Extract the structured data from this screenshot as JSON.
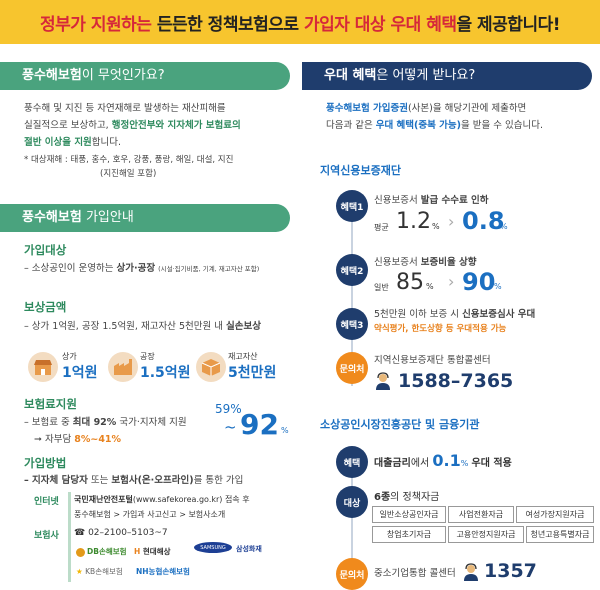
{
  "banner": {
    "part1": "정부가 지원하는",
    "part2": "든든한 정책보험으로",
    "part3": "가입자 대상 우대 혜택",
    "part4": "을 제공합니다!"
  },
  "left": {
    "what": {
      "title_bold": "풍수해보험",
      "title_rest": "이 무엇인가요?",
      "line1": "풍수해 및 지진 등 자연재해로 발생하는 재산피해를",
      "line2a": "실질적으로 보상하고,",
      "line2b": "행정안전부와 지자체가 보험료의",
      "line3a": "절반 이상을 지원",
      "line3b": "합니다.",
      "note1": "* 대상재해 : 태풍, 홍수, 호우, 강풍, 풍랑, 해일, 대설, 지진",
      "note2": "(지진해일 포함)"
    },
    "guide": {
      "title_bold": "풍수해보험",
      "title_rest": " 가입안내",
      "target_label": "가입대상",
      "target_text": "– 소상공인이 운영하는",
      "target_bold": "상가·공장",
      "target_small": "(시설·집기비품, 기계, 재고자산 포함)",
      "amount_label": "보상금액",
      "amount_text": "– 상가 1억원, 공장 1.5억원, 재고자산 5천만원 내",
      "amount_bold": "실손보상",
      "icons": [
        {
          "label": "상가",
          "value": "1억원"
        },
        {
          "label": "공장",
          "value": "1.5억원"
        },
        {
          "label": "재고자산",
          "value": "5천만원"
        }
      ],
      "premium_label": "보험료지원",
      "premium_text": "– 보험료 중",
      "premium_bold": "최대 92%",
      "premium_rest": "국가·지자체 지원",
      "premium_self": "➞ 자부담",
      "premium_self_val": "8%~41%",
      "premium_from": "59%",
      "premium_tilde": "~",
      "premium_to": "92",
      "premium_pct": "%",
      "method_label": "가입방법",
      "method_text": "– 지자체 담당자",
      "method_text2": "또는",
      "method_bold": "보험사(온·오프라인)",
      "method_rest": "를 통한 가입",
      "internet_label": "인터넷",
      "internet_line1": "국민재난안전포털",
      "internet_line1b": "(www.safekorea.go.kr) 접속 후",
      "internet_line2": "풍수해보험 > 가입과 사고신고 > 보험사소개",
      "insurer_label": "보험사",
      "phone": "☎ 02–2100–5103~7",
      "logos": [
        "DB손해보험",
        "현대해상",
        "SAMSUNG",
        "삼성화재",
        "KB손해보험",
        "NH농협손해보험"
      ]
    }
  },
  "right": {
    "benefit": {
      "title_bold": "우대 혜택",
      "title_rest": "은 어떻게 받나요?",
      "line1a": "풍수해보험 가입증권",
      "line1b": "(사본)을 해당기관에 제출하면",
      "line2a": "다음과 같은",
      "line2b": "우대 혜택(중복 가능)",
      "line2c": "을 받을 수 있습니다."
    },
    "fund": {
      "title": "지역신용보증재단",
      "b1": "혜택1",
      "b1_text": "신용보증서",
      "b1_bold": "발급 수수료 인하",
      "b1_prefix": "평균",
      "b1_from": "1.2",
      "b1_to": "0.8",
      "pct": "%",
      "b2": "혜택2",
      "b2_text": "신용보증서",
      "b2_bold": "보증비율 상향",
      "b2_prefix": "일반",
      "b2_from": "85",
      "b2_to": "90",
      "b3": "혜택3",
      "b3_text": "5천만원 이하 보증 시",
      "b3_bold": "신용보증심사 우대",
      "b3_sub": "약식평가, 한도상향 등 우대적용 가능",
      "contact": "문의처",
      "contact_text": "지역신용보증재단 통합콜센터",
      "contact_num": "1588–7365"
    },
    "agency": {
      "title": "소상공인시장진흥공단 및 금융기관",
      "b1": "혜택",
      "b1_text": "대출금리",
      "b1_text2": "에서",
      "b1_val": "0.1",
      "b1_pct": "%",
      "b1_rest": "우대 적용",
      "b2": "대상",
      "b2_bold": "6종",
      "b2_text": "의 정책자금",
      "funds": [
        "일반소상공인자금",
        "사업전환자금",
        "여성가장지원자금",
        "창업초기자금",
        "고용안정지원자금",
        "청년고용특별자금"
      ],
      "contact": "문의처",
      "contact_text": "중소기업통합 콜센터",
      "contact_num": "1357"
    }
  },
  "colors": {
    "green": "#4aa37e",
    "navy": "#1f3d6d",
    "blue": "#1b6fc1",
    "orange": "#e8821e",
    "yellow": "#f7c52e",
    "red": "#d6283a"
  }
}
